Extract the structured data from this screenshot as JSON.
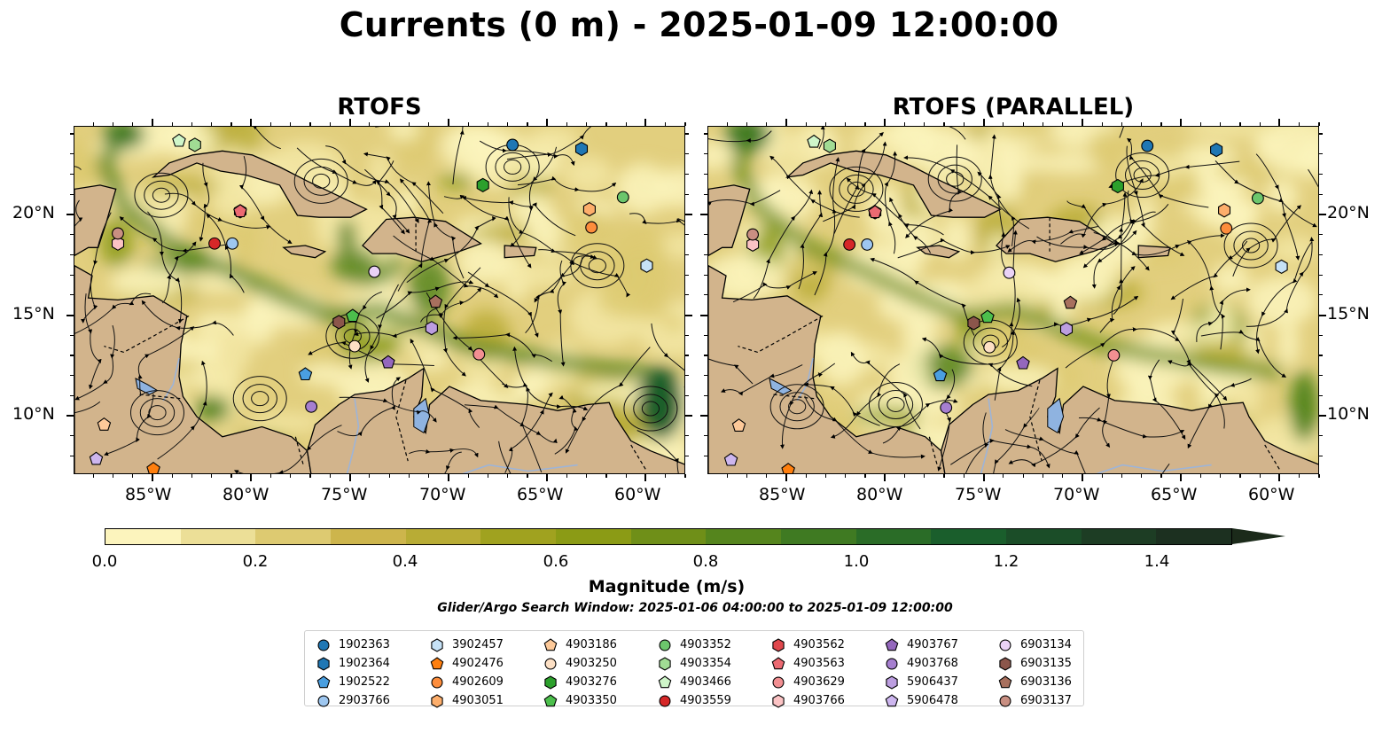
{
  "title": "Currents (0 m) - 2025-01-09 12:00:00",
  "panels": [
    {
      "title": "RTOFS"
    },
    {
      "title": "RTOFS (PARALLEL)"
    }
  ],
  "axes": {
    "x_ticks": [
      "85°W",
      "80°W",
      "75°W",
      "70°W",
      "65°W",
      "60°W"
    ],
    "y_ticks": [
      "20°N",
      "15°N",
      "10°N"
    ]
  },
  "colorbar": {
    "label": "Magnitude (m/s)",
    "ticks": [
      "0.0",
      "0.2",
      "0.4",
      "0.6",
      "0.8",
      "1.0",
      "1.2",
      "1.4"
    ],
    "range": [
      0,
      1.5
    ],
    "extend": "max",
    "colors": [
      "#fcf4bd",
      "#ecdf97",
      "#ddca71",
      "#cdb54c",
      "#b8ac35",
      "#a0a21f",
      "#8b9b15",
      "#6f8f18",
      "#55851d",
      "#3f7a22",
      "#2a6c27",
      "#1a5e2c",
      "#1b4d28",
      "#1d3d24",
      "#1c3020",
      "#1b281c"
    ]
  },
  "search_window": "Glider/Argo Search Window: 2025-01-06 04:00:00 to 2025-01-09 12:00:00",
  "legend": [
    {
      "id": "1902363",
      "shape": "circle",
      "color": "#1f77b4"
    },
    {
      "id": "1902364",
      "shape": "hexagon",
      "color": "#1f77b4"
    },
    {
      "id": "1902522",
      "shape": "pentagon",
      "color": "#4a9fe0"
    },
    {
      "id": "2903766",
      "shape": "circle",
      "color": "#9ec7f0"
    },
    {
      "id": "3902457",
      "shape": "hexagon",
      "color": "#c6e2f7"
    },
    {
      "id": "4902476",
      "shape": "pentagon",
      "color": "#ff7f0e"
    },
    {
      "id": "4902609",
      "shape": "circle",
      "color": "#fd8d3c"
    },
    {
      "id": "4903051",
      "shape": "hexagon",
      "color": "#fdae6b"
    },
    {
      "id": "4903186",
      "shape": "pentagon",
      "color": "#fdc999"
    },
    {
      "id": "4903250",
      "shape": "circle",
      "color": "#fde0c5"
    },
    {
      "id": "4903276",
      "shape": "hexagon",
      "color": "#2ca02c"
    },
    {
      "id": "4903350",
      "shape": "pentagon",
      "color": "#4cbf4c"
    },
    {
      "id": "4903352",
      "shape": "circle",
      "color": "#6cc66c"
    },
    {
      "id": "4903354",
      "shape": "hexagon",
      "color": "#a1dc94"
    },
    {
      "id": "4903466",
      "shape": "pentagon",
      "color": "#cff6c9"
    },
    {
      "id": "4903559",
      "shape": "circle",
      "color": "#d62728"
    },
    {
      "id": "4903562",
      "shape": "hexagon",
      "color": "#e0474c"
    },
    {
      "id": "4903563",
      "shape": "pentagon",
      "color": "#ec6a72"
    },
    {
      "id": "4903629",
      "shape": "circle",
      "color": "#f28f92"
    },
    {
      "id": "4903766",
      "shape": "hexagon",
      "color": "#fbc3c4"
    },
    {
      "id": "4903767",
      "shape": "pentagon",
      "color": "#9467bd"
    },
    {
      "id": "4903768",
      "shape": "circle",
      "color": "#a67fd0"
    },
    {
      "id": "5906437",
      "shape": "hexagon",
      "color": "#bc9ee0"
    },
    {
      "id": "5906478",
      "shape": "pentagon",
      "color": "#cdb6ef"
    },
    {
      "id": "6903134",
      "shape": "circle",
      "color": "#ead2f7"
    },
    {
      "id": "6903135",
      "shape": "hexagon",
      "color": "#8c564b"
    },
    {
      "id": "6903136",
      "shape": "pentagon",
      "color": "#a8705e"
    },
    {
      "id": "6903137",
      "shape": "circle",
      "color": "#c98f82"
    }
  ],
  "markers": [
    {
      "id": "1902363",
      "lon": -66.8,
      "lat": 23.5
    },
    {
      "id": "1902364",
      "lon": -63.3,
      "lat": 23.3
    },
    {
      "id": "1902522",
      "lon": -77.3,
      "lat": 12.1
    },
    {
      "id": "2903766",
      "lon": -81.0,
      "lat": 18.6
    },
    {
      "id": "3902457",
      "lon": -60.0,
      "lat": 17.5
    },
    {
      "id": "4902476",
      "lon": -85.0,
      "lat": 7.4
    },
    {
      "id": "4902609",
      "lon": -62.8,
      "lat": 19.4
    },
    {
      "id": "4903051",
      "lon": -62.9,
      "lat": 20.3
    },
    {
      "id": "4903186",
      "lon": -87.5,
      "lat": 9.6
    },
    {
      "id": "4903250",
      "lon": -74.8,
      "lat": 13.5
    },
    {
      "id": "4903276",
      "lon": -68.3,
      "lat": 21.5
    },
    {
      "id": "4903350",
      "lon": -74.9,
      "lat": 15.0
    },
    {
      "id": "4903352",
      "lon": -61.2,
      "lat": 20.9
    },
    {
      "id": "4903354",
      "lon": -82.9,
      "lat": 23.5
    },
    {
      "id": "4903466",
      "lon": -83.7,
      "lat": 23.7
    },
    {
      "id": "4903559",
      "lon": -81.9,
      "lat": 18.6
    },
    {
      "id": "4903562",
      "lon": -80.6,
      "lat": 20.2
    },
    {
      "id": "4903563",
      "lon": -80.6,
      "lat": 20.2
    },
    {
      "id": "4903629",
      "lon": -68.5,
      "lat": 13.1
    },
    {
      "id": "4903766",
      "lon": -86.8,
      "lat": 18.6
    },
    {
      "id": "4903767",
      "lon": -73.1,
      "lat": 12.7
    },
    {
      "id": "4903768",
      "lon": -77.0,
      "lat": 10.5
    },
    {
      "id": "5906437",
      "lon": -70.9,
      "lat": 14.4
    },
    {
      "id": "5906478",
      "lon": -87.9,
      "lat": 7.9
    },
    {
      "id": "6903134",
      "lon": -73.8,
      "lat": 17.2
    },
    {
      "id": "6903135",
      "lon": -75.6,
      "lat": 14.7
    },
    {
      "id": "6903136",
      "lon": -70.7,
      "lat": 15.7
    },
    {
      "id": "6903137",
      "lon": -86.8,
      "lat": 19.1
    }
  ]
}
